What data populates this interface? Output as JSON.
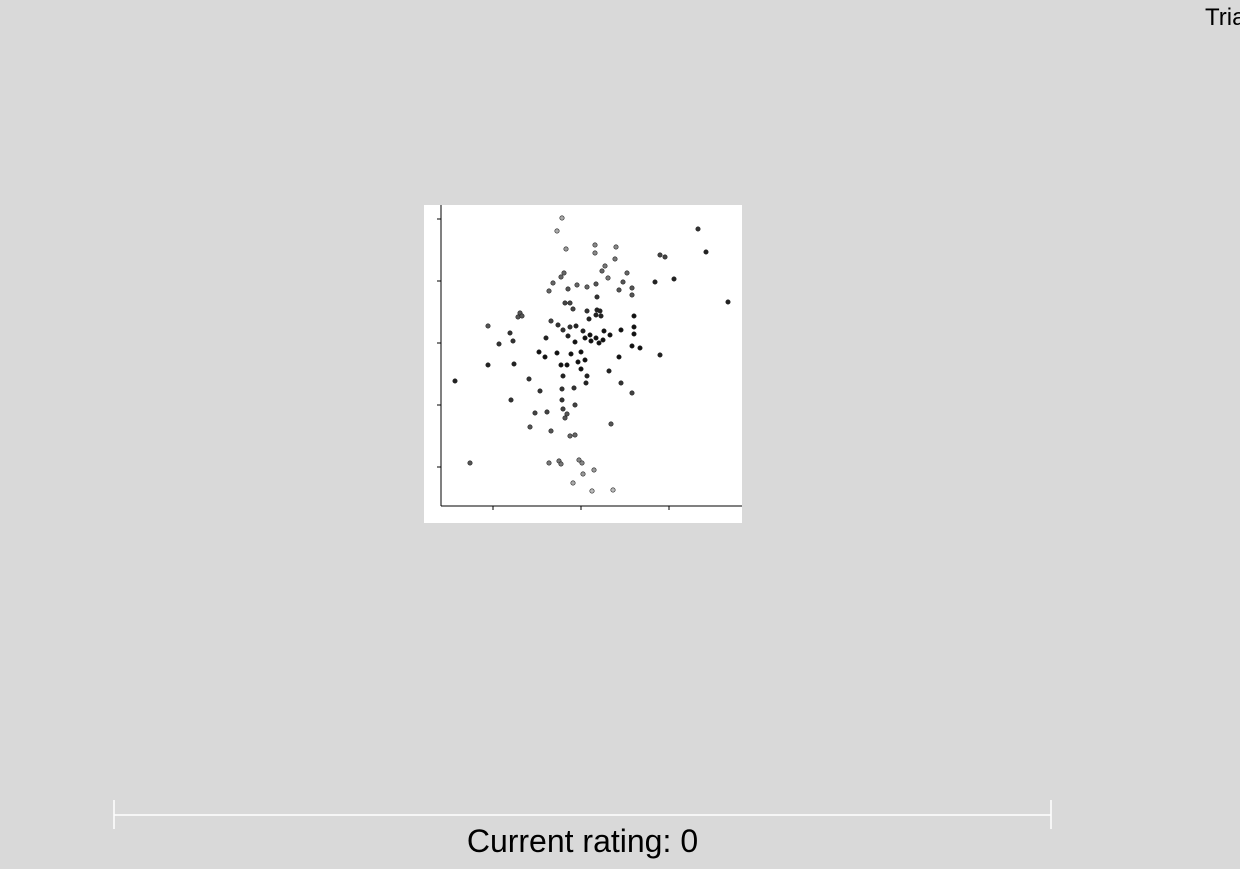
{
  "header": {
    "title": "Tria"
  },
  "rating": {
    "label": "Current rating:",
    "value": 0
  }
}
